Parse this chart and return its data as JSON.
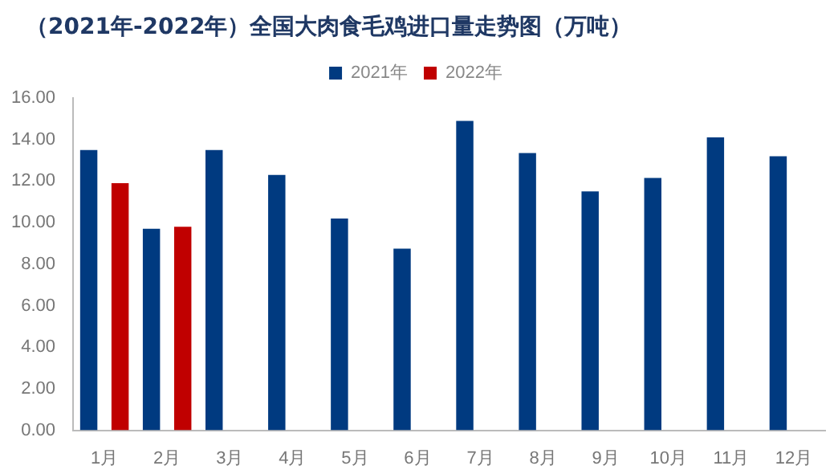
{
  "chart_data": {
    "type": "bar",
    "title": "（2021年-2022年）全国大肉食毛鸡进口量走势图（万吨）",
    "categories": [
      "1月",
      "2月",
      "3月",
      "4月",
      "5月",
      "6月",
      "7月",
      "8月",
      "9月",
      "10月",
      "11月",
      "12月"
    ],
    "series": [
      {
        "name": "2021年",
        "color": "#003a80",
        "values": [
          13.5,
          9.7,
          13.5,
          12.3,
          10.2,
          8.75,
          14.9,
          13.35,
          11.5,
          12.15,
          14.1,
          13.2
        ]
      },
      {
        "name": "2022年",
        "color": "#c00000",
        "values": [
          11.9,
          9.8,
          null,
          null,
          null,
          null,
          null,
          null,
          null,
          null,
          null,
          null
        ]
      }
    ],
    "ylim": [
      0,
      16
    ],
    "yticks": [
      {
        "value": 0,
        "label": "0.00"
      },
      {
        "value": 2,
        "label": "2.00"
      },
      {
        "value": 4,
        "label": "4.00"
      },
      {
        "value": 6,
        "label": "6.00"
      },
      {
        "value": 8,
        "label": "8.00"
      },
      {
        "value": 10,
        "label": "10.00"
      },
      {
        "value": 12,
        "label": "12.00"
      },
      {
        "value": 14,
        "label": "14.00"
      },
      {
        "value": 16,
        "label": "16.00"
      }
    ],
    "grid": false,
    "legend": "top"
  }
}
